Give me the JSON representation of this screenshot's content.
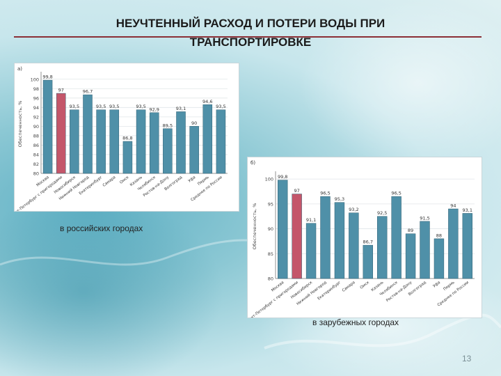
{
  "slide": {
    "title_line1": "НЕУЧТЕННЫЙ РАСХОД И ПОТЕРИ ВОДЫ ПРИ",
    "title_line2": "ТРАНСПОРТИРОВКЕ",
    "caption_russian": "в российских городах",
    "caption_foreign": "в зарубежных городах",
    "page_number": "13"
  },
  "colors": {
    "bar": "#4f90a8",
    "highlight_bar": "#c4566a",
    "title_rule": "#8b2e35"
  },
  "chart_data": [
    {
      "type": "bar",
      "panel_label": "а)",
      "ylabel": "Обеспеченность, %",
      "ylim": [
        80,
        101
      ],
      "yticks": [
        80,
        82,
        84,
        86,
        88,
        90,
        92,
        94,
        96,
        98,
        100
      ],
      "grid": true,
      "categories": [
        "Москва",
        "Санкт-Петербург с пригородами",
        "Новосибирск",
        "Нижний Новгород",
        "Екатеринбург",
        "Самара",
        "Омск",
        "Казань",
        "Челябинск",
        "Ростов-на-Дону",
        "Волгоград",
        "Уфа",
        "Пермь",
        "Среднее по России"
      ],
      "values": [
        99.8,
        97,
        93.5,
        96.7,
        93.5,
        93.5,
        86.8,
        93.5,
        92.9,
        89.5,
        93.1,
        90,
        94.6,
        93.5
      ],
      "value_labels": [
        "99,8",
        "97",
        "93,5",
        "96,7",
        "93,5",
        "93,5",
        "86,8",
        "93,5",
        "92,9",
        "89,5",
        "93,1",
        "90",
        "94,6",
        "93,5"
      ],
      "highlight_index": 1
    },
    {
      "type": "bar",
      "panel_label": "б)",
      "ylabel": "Обеспеченность, %",
      "ylim": [
        80,
        101
      ],
      "yticks": [
        80,
        85,
        90,
        95,
        100
      ],
      "grid": true,
      "categories": [
        "Москва",
        "Санкт-Петербург с пригородами",
        "Новосибирск",
        "Нижний Новгород",
        "Екатеринбург",
        "Самара",
        "Омск",
        "Казань",
        "Челябинск",
        "Ростов-на-Дону",
        "Волгоград",
        "Уфа",
        "Пермь",
        "Среднее по России"
      ],
      "values": [
        99.8,
        97,
        91.1,
        96.5,
        95.3,
        93.2,
        86.7,
        92.5,
        96.5,
        89,
        91.5,
        88,
        94,
        93.1
      ],
      "value_labels": [
        "99,8",
        "97",
        "91,1",
        "96,5",
        "95,3",
        "93,2",
        "86,7",
        "92,5",
        "96,5",
        "89",
        "91,5",
        "88",
        "94",
        "93,1"
      ],
      "highlight_index": 1
    }
  ]
}
